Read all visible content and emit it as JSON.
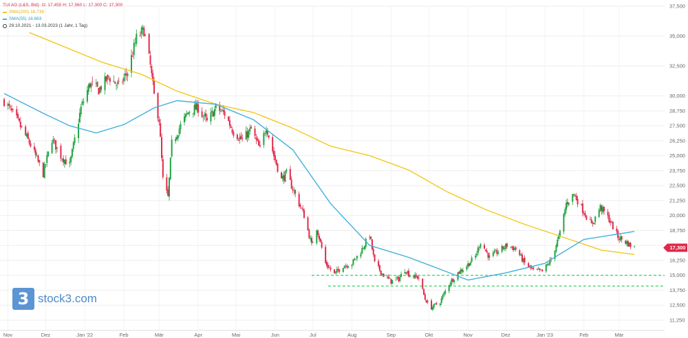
{
  "legend": {
    "instrument": "TUI AG (L&S, Bid)",
    "ohlc": "O: 17,455  H: 17,560  L: 17,300  C: 17,300",
    "sma200": "SMA(200)  16,739",
    "sma55": "SMA(55)  18,663",
    "range": "29.10.2021 - 13.03.2023  (1 Jahr, 1 Tag)"
  },
  "logo": {
    "text": "stock3.com",
    "mark": "3"
  },
  "colors": {
    "up": "#1fa341",
    "down": "#e0294a",
    "sma200": "#f2c81c",
    "sma55": "#3fb0dc",
    "support": "#33d35f",
    "price_tag": "#e0294a"
  },
  "chart_data": {
    "type": "candlestick",
    "period": "29.10.2021 - 13.03.2023",
    "interval": "1 Tag",
    "y_ticks": [
      "37,500",
      "35,000",
      "32,500",
      "30,000",
      "28,750",
      "27,500",
      "26,250",
      "25,000",
      "23,750",
      "22,500",
      "21,250",
      "20,000",
      "18,750",
      "17,500",
      "16,250",
      "15,000",
      "13,750",
      "12,500",
      "11,250"
    ],
    "x_ticks": [
      "Nov",
      "Dez",
      "Jan '22",
      "Feb",
      "Mär",
      "Apr",
      "Mai",
      "Jun",
      "Jul",
      "Aug",
      "Sep",
      "Okt",
      "Nov",
      "Dez",
      "Jan '23",
      "Feb",
      "Mär"
    ],
    "last_price": "17,300",
    "close_path": [
      {
        "date": "2021-10-29",
        "v": 29.6
      },
      {
        "date": "2021-11-08",
        "v": 28.0
      },
      {
        "date": "2021-11-19",
        "v": 25.9
      },
      {
        "date": "2021-11-29",
        "v": 23.5
      },
      {
        "date": "2021-12-06",
        "v": 26.4
      },
      {
        "date": "2021-12-13",
        "v": 25.0
      },
      {
        "date": "2021-12-20",
        "v": 24.2
      },
      {
        "date": "2021-12-29",
        "v": 29.0
      },
      {
        "date": "2022-01-05",
        "v": 31.0
      },
      {
        "date": "2022-01-12",
        "v": 30.5
      },
      {
        "date": "2022-01-20",
        "v": 31.6
      },
      {
        "date": "2022-01-28",
        "v": 30.8
      },
      {
        "date": "2022-02-04",
        "v": 32.0
      },
      {
        "date": "2022-02-11",
        "v": 34.8
      },
      {
        "date": "2022-02-17",
        "v": 35.5
      },
      {
        "date": "2022-02-22",
        "v": 32.5
      },
      {
        "date": "2022-02-25",
        "v": 30.0
      },
      {
        "date": "2022-03-01",
        "v": 28.0
      },
      {
        "date": "2022-03-04",
        "v": 23.0
      },
      {
        "date": "2022-03-08",
        "v": 21.5
      },
      {
        "date": "2022-03-11",
        "v": 26.0
      },
      {
        "date": "2022-03-18",
        "v": 27.5
      },
      {
        "date": "2022-03-25",
        "v": 28.8
      },
      {
        "date": "2022-04-01",
        "v": 29.0
      },
      {
        "date": "2022-04-08",
        "v": 27.8
      },
      {
        "date": "2022-04-15",
        "v": 29.0
      },
      {
        "date": "2022-04-22",
        "v": 28.5
      },
      {
        "date": "2022-04-29",
        "v": 27.0
      },
      {
        "date": "2022-05-06",
        "v": 26.3
      },
      {
        "date": "2022-05-13",
        "v": 27.2
      },
      {
        "date": "2022-05-20",
        "v": 25.5
      },
      {
        "date": "2022-05-25",
        "v": 27.5
      },
      {
        "date": "2022-05-31",
        "v": 25.0
      },
      {
        "date": "2022-06-06",
        "v": 23.0
      },
      {
        "date": "2022-06-10",
        "v": 23.5
      },
      {
        "date": "2022-06-16",
        "v": 22.0
      },
      {
        "date": "2022-06-24",
        "v": 20.0
      },
      {
        "date": "2022-06-30",
        "v": 17.5
      },
      {
        "date": "2022-07-04",
        "v": 19.0
      },
      {
        "date": "2022-07-11",
        "v": 16.0
      },
      {
        "date": "2022-07-18",
        "v": 15.1
      },
      {
        "date": "2022-07-25",
        "v": 15.8
      },
      {
        "date": "2022-08-01",
        "v": 16.0
      },
      {
        "date": "2022-08-08",
        "v": 17.0
      },
      {
        "date": "2022-08-15",
        "v": 18.4
      },
      {
        "date": "2022-08-19",
        "v": 16.0
      },
      {
        "date": "2022-08-26",
        "v": 15.0
      },
      {
        "date": "2022-09-01",
        "v": 14.5
      },
      {
        "date": "2022-09-07",
        "v": 14.7
      },
      {
        "date": "2022-09-12",
        "v": 15.5
      },
      {
        "date": "2022-09-16",
        "v": 15.0
      },
      {
        "date": "2022-09-23",
        "v": 14.8
      },
      {
        "date": "2022-09-28",
        "v": 13.0
      },
      {
        "date": "2022-10-03",
        "v": 12.3
      },
      {
        "date": "2022-10-10",
        "v": 12.8
      },
      {
        "date": "2022-10-17",
        "v": 14.3
      },
      {
        "date": "2022-10-24",
        "v": 15.2
      },
      {
        "date": "2022-10-31",
        "v": 15.8
      },
      {
        "date": "2022-11-07",
        "v": 16.6
      },
      {
        "date": "2022-11-11",
        "v": 17.8
      },
      {
        "date": "2022-11-18",
        "v": 16.5
      },
      {
        "date": "2022-11-25",
        "v": 17.0
      },
      {
        "date": "2022-12-02",
        "v": 17.5
      },
      {
        "date": "2022-12-09",
        "v": 17.2
      },
      {
        "date": "2022-12-16",
        "v": 16.0
      },
      {
        "date": "2022-12-23",
        "v": 15.4
      },
      {
        "date": "2022-12-30",
        "v": 15.3
      },
      {
        "date": "2023-01-06",
        "v": 16.3
      },
      {
        "date": "2023-01-13",
        "v": 18.5
      },
      {
        "date": "2023-01-18",
        "v": 21.0
      },
      {
        "date": "2023-01-24",
        "v": 21.8
      },
      {
        "date": "2023-01-31",
        "v": 20.5
      },
      {
        "date": "2023-02-07",
        "v": 19.2
      },
      {
        "date": "2023-02-14",
        "v": 20.7
      },
      {
        "date": "2023-02-21",
        "v": 19.7
      },
      {
        "date": "2023-02-28",
        "v": 18.2
      },
      {
        "date": "2023-03-06",
        "v": 17.8
      },
      {
        "date": "2023-03-10",
        "v": 17.5
      },
      {
        "date": "2023-03-13",
        "v": 17.3
      }
    ],
    "sma200": [
      {
        "date": "2021-11-18",
        "v": 35.3
      },
      {
        "date": "2022-01-15",
        "v": 32.8
      },
      {
        "date": "2022-02-15",
        "v": 31.8
      },
      {
        "date": "2022-03-15",
        "v": 30.4
      },
      {
        "date": "2022-04-15",
        "v": 29.3
      },
      {
        "date": "2022-05-15",
        "v": 28.6
      },
      {
        "date": "2022-06-15",
        "v": 27.3
      },
      {
        "date": "2022-07-15",
        "v": 25.8
      },
      {
        "date": "2022-08-15",
        "v": 25.0
      },
      {
        "date": "2022-09-15",
        "v": 23.8
      },
      {
        "date": "2022-10-15",
        "v": 22.0
      },
      {
        "date": "2022-11-15",
        "v": 20.5
      },
      {
        "date": "2022-12-15",
        "v": 19.3
      },
      {
        "date": "2023-01-15",
        "v": 18.2
      },
      {
        "date": "2023-02-15",
        "v": 17.1
      },
      {
        "date": "2023-03-13",
        "v": 16.739
      }
    ],
    "sma55": [
      {
        "date": "2021-10-29",
        "v": 30.2
      },
      {
        "date": "2021-11-30",
        "v": 28.5
      },
      {
        "date": "2021-12-20",
        "v": 27.5
      },
      {
        "date": "2022-01-10",
        "v": 26.9
      },
      {
        "date": "2022-02-01",
        "v": 27.6
      },
      {
        "date": "2022-02-25",
        "v": 29.0
      },
      {
        "date": "2022-03-15",
        "v": 29.6
      },
      {
        "date": "2022-04-15",
        "v": 29.3
      },
      {
        "date": "2022-05-15",
        "v": 28.0
      },
      {
        "date": "2022-06-15",
        "v": 25.5
      },
      {
        "date": "2022-07-15",
        "v": 21.0
      },
      {
        "date": "2022-08-15",
        "v": 17.5
      },
      {
        "date": "2022-09-15",
        "v": 16.5
      },
      {
        "date": "2022-10-15",
        "v": 15.3
      },
      {
        "date": "2022-11-01",
        "v": 14.6
      },
      {
        "date": "2022-12-01",
        "v": 15.2
      },
      {
        "date": "2023-01-01",
        "v": 16.0
      },
      {
        "date": "2023-02-01",
        "v": 18.0
      },
      {
        "date": "2023-03-13",
        "v": 18.663
      }
    ],
    "support_lines": [
      {
        "start": "2022-06-30",
        "v": 15.0
      },
      {
        "start": "2022-07-13",
        "v": 14.1
      }
    ],
    "grid": true
  }
}
